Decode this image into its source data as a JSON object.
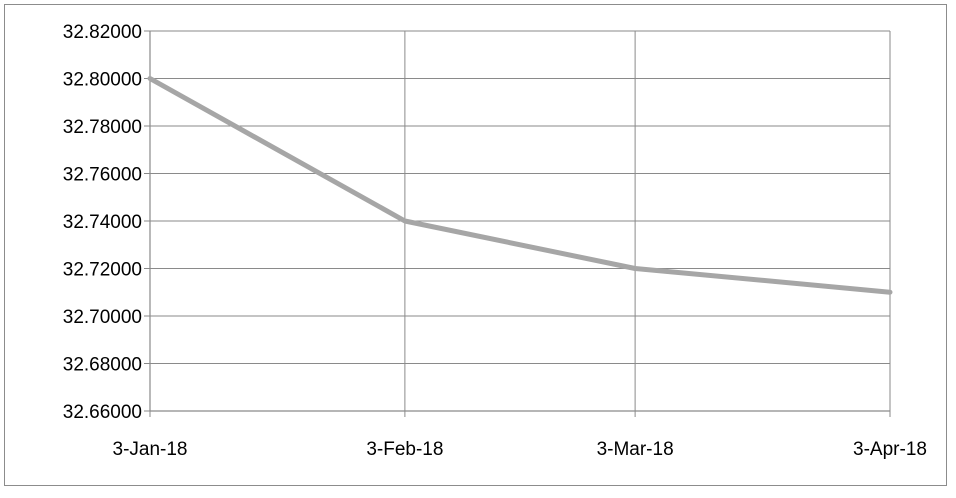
{
  "chart_data": {
    "type": "line",
    "title": "",
    "xlabel": "",
    "ylabel": "",
    "categories": [
      "3-Jan-18",
      "3-Feb-18",
      "3-Mar-18",
      "3-Apr-18"
    ],
    "x_dates": [
      "2018-01-03",
      "2018-02-03",
      "2018-03-03",
      "2018-04-03"
    ],
    "series": [
      {
        "values": [
          32.8,
          32.74,
          32.72,
          32.71
        ],
        "color": "#a6a6a6"
      }
    ],
    "ylim": [
      32.66,
      32.82
    ],
    "yticks": [
      32.66,
      32.68,
      32.7,
      32.72,
      32.74,
      32.76,
      32.78,
      32.8,
      32.82
    ],
    "ytick_labels": [
      "32.66000",
      "32.68000",
      "32.70000",
      "32.72000",
      "32.74000",
      "32.76000",
      "32.78000",
      "32.80000",
      "32.82000"
    ],
    "grid": true,
    "legend": "none"
  }
}
